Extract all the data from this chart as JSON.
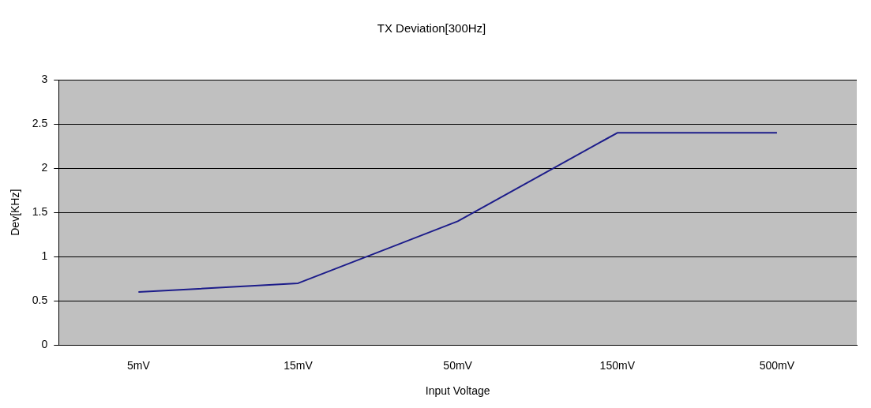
{
  "chart_data": {
    "type": "line",
    "title": "TX Deviation[300Hz]",
    "xlabel": "Input Voltage",
    "ylabel": "Dev[KHz]",
    "categories": [
      "5mV",
      "15mV",
      "50mV",
      "150mV",
      "500mV"
    ],
    "series": [
      {
        "color": "#1c1c8a",
        "values": [
          0.6,
          0.7,
          1.4,
          2.4,
          2.4
        ]
      }
    ],
    "ylim": [
      0,
      3
    ],
    "yticks": [
      0,
      0.5,
      1,
      1.5,
      2,
      2.5,
      3
    ],
    "grid": "y",
    "legend": false,
    "marker": "none",
    "line_style": "solid"
  }
}
